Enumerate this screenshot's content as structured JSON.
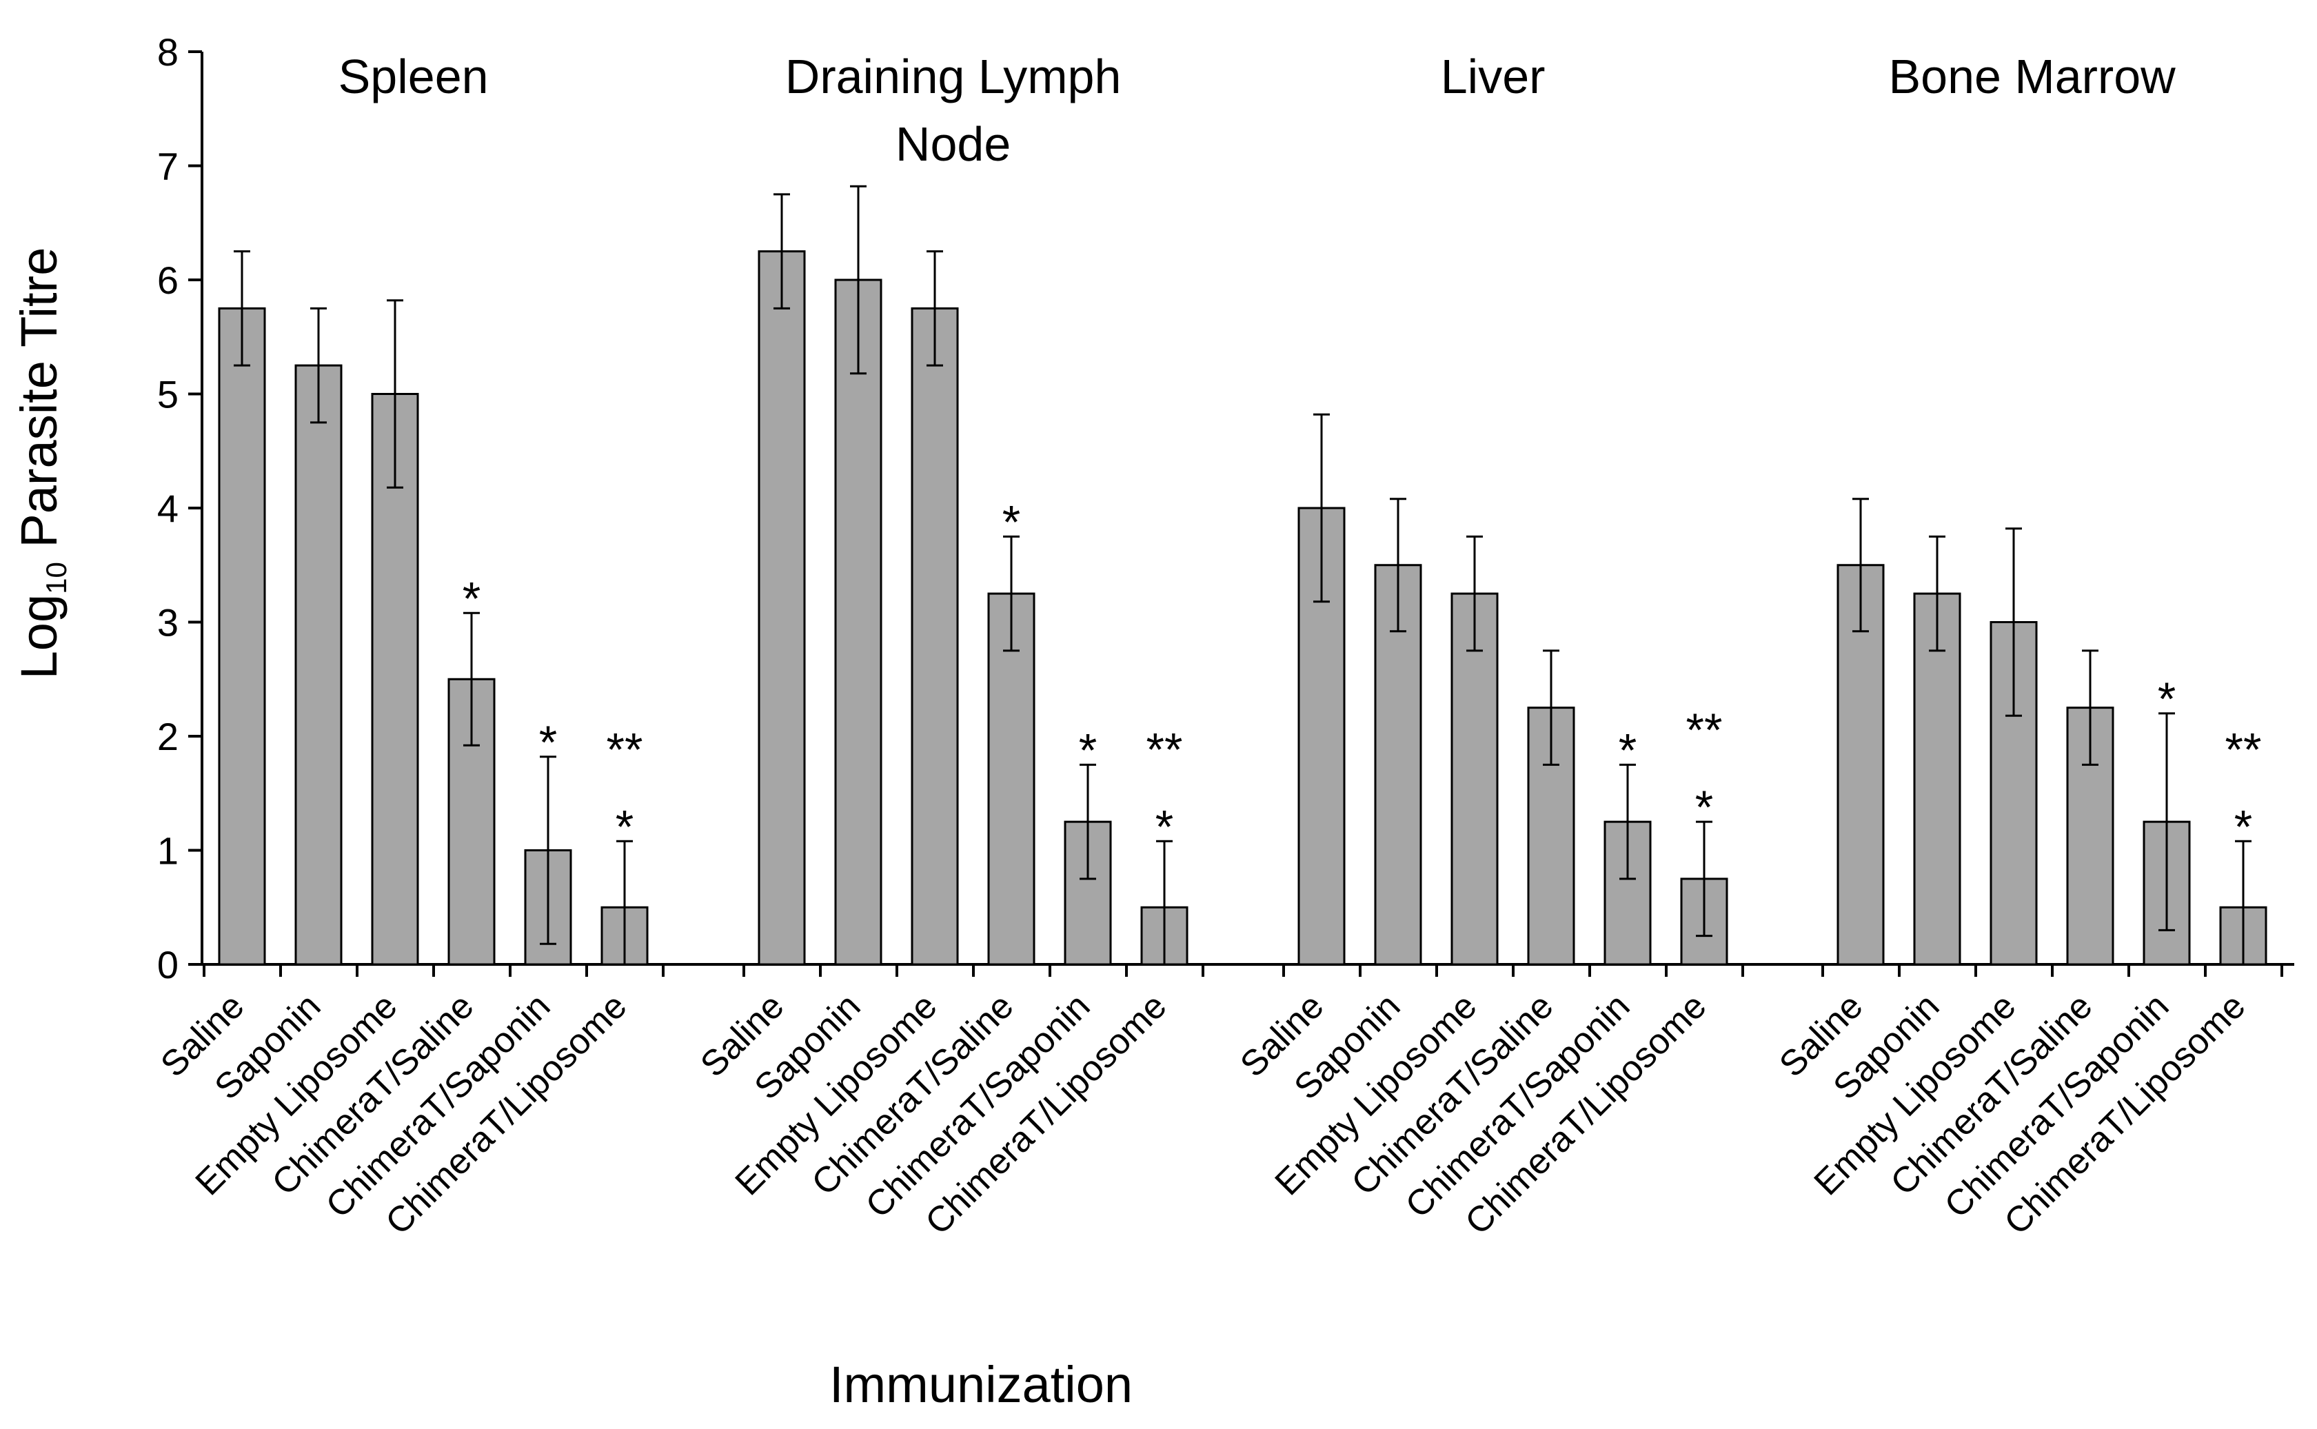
{
  "chart_data": {
    "type": "bar",
    "title": "",
    "xlabel": "Immunization",
    "ylabel": {
      "prefix": "Log",
      "subscript": "10",
      "suffix": " Parasite Titre"
    },
    "ylim": [
      0,
      8
    ],
    "yticks": [
      "0",
      "1",
      "2",
      "3",
      "4",
      "5",
      "6",
      "7",
      "8"
    ],
    "categories": [
      "Saline",
      "Saponin",
      "Empty Liposome",
      "ChimeraT/Saline",
      "ChimeraT/Saponin",
      "ChimeraT/Liposome"
    ],
    "groups": [
      {
        "name": "Spleen",
        "title_lines": [
          "Spleen"
        ],
        "values": [
          5.75,
          5.25,
          5.0,
          2.5,
          1.0,
          0.5
        ],
        "errors": [
          0.5,
          0.5,
          0.82,
          0.58,
          0.82,
          0.58
        ],
        "annotations": [
          [],
          [],
          [],
          [
            "*"
          ],
          [
            "*"
          ],
          [
            "**",
            "*"
          ]
        ]
      },
      {
        "name": "Draining Lymph Node",
        "title_lines": [
          "Draining Lymph",
          "Node"
        ],
        "values": [
          6.25,
          6.0,
          5.75,
          3.25,
          1.25,
          0.5
        ],
        "errors": [
          0.5,
          0.82,
          0.5,
          0.5,
          0.5,
          0.58
        ],
        "annotations": [
          [],
          [],
          [],
          [
            "*"
          ],
          [
            "*"
          ],
          [
            "**",
            "*"
          ]
        ]
      },
      {
        "name": "Liver",
        "title_lines": [
          "Liver"
        ],
        "values": [
          4.0,
          3.5,
          3.25,
          2.25,
          1.25,
          0.75
        ],
        "errors": [
          0.82,
          0.58,
          0.5,
          0.5,
          0.5,
          0.5
        ],
        "annotations": [
          [],
          [],
          [],
          [],
          [
            "*"
          ],
          [
            "**",
            "*"
          ]
        ]
      },
      {
        "name": "Bone Marrow",
        "title_lines": [
          "Bone Marrow"
        ],
        "values": [
          3.5,
          3.25,
          3.0,
          2.25,
          1.25,
          0.5
        ],
        "errors": [
          0.58,
          0.5,
          0.82,
          0.5,
          0.95,
          0.58
        ],
        "annotations": [
          [],
          [],
          [],
          [],
          [
            "*"
          ],
          [
            "**",
            "*"
          ]
        ]
      }
    ],
    "bar_color": "#a6a6a6",
    "bar_stroke": "#000000",
    "grid": false,
    "legend": "none"
  }
}
